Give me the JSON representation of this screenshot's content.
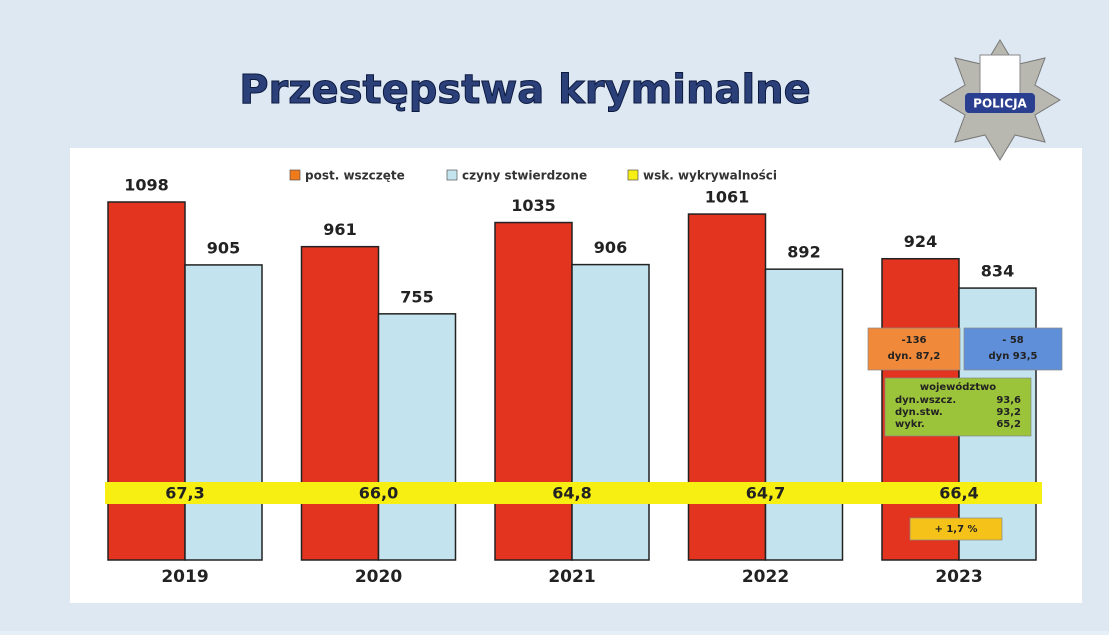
{
  "chart_data": {
    "type": "bar",
    "title": "Przestępstwa kryminalne",
    "logo_text": "POLICJA",
    "categories": [
      "2019",
      "2020",
      "2021",
      "2022",
      "2023"
    ],
    "series": [
      {
        "name": "post. wszczęte",
        "color": "#e2341f",
        "legend_color": "#f07a1a",
        "values": [
          1098,
          961,
          1035,
          1061,
          924
        ]
      },
      {
        "name": "czyny stwierdzone",
        "color": "#c3e3ee",
        "legend_color": "#c3e3ee",
        "values": [
          905,
          755,
          906,
          892,
          834
        ]
      }
    ],
    "rate": {
      "name": "wsk. wykrywalności",
      "color": "#f7ef12",
      "values": [
        67.3,
        66.0,
        64.8,
        64.7,
        66.4
      ],
      "value_labels": [
        "67,3",
        "66,0",
        "64,8",
        "64,7",
        "66,4"
      ]
    },
    "annotations": [
      {
        "lines": [
          "-136",
          "dyn. 87,2"
        ],
        "color": "#f08a3a"
      },
      {
        "lines": [
          "- 58",
          "dyn  93,5"
        ],
        "color": "#5f8fd8"
      },
      {
        "title": "województwo",
        "rows": [
          [
            "dyn.wszcz.",
            "93,6"
          ],
          [
            "dyn.stw.",
            "93,2"
          ],
          [
            "wykr.",
            "65,2"
          ]
        ],
        "color": "#9cc43a"
      },
      {
        "lines": [
          "+ 1,7 %"
        ],
        "color": "#f5c21a"
      }
    ]
  }
}
